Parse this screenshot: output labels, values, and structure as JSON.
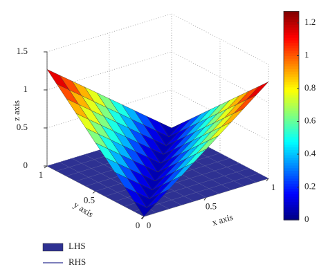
{
  "chart_data": {
    "type": "surface3d",
    "xlabel": "x axis",
    "ylabel": "y axis",
    "zlabel": "z axis",
    "x": [
      0,
      0.1,
      0.2,
      0.3,
      0.4,
      0.5,
      0.6,
      0.7,
      0.8,
      0.9,
      1
    ],
    "y": [
      0,
      0.1,
      0.2,
      0.3,
      0.4,
      0.5,
      0.6,
      0.7,
      0.8,
      0.9,
      1
    ],
    "xlim": [
      0,
      1
    ],
    "xticks": [
      0,
      0.5,
      1
    ],
    "ylim": [
      0,
      1
    ],
    "yticks": [
      0,
      0.5,
      1
    ],
    "zlim": [
      0,
      1.5
    ],
    "zticks": [
      0,
      0.5,
      1,
      1.5
    ],
    "clim": [
      0,
      1.27
    ],
    "cticks": [
      0,
      0.2,
      0.4,
      0.6,
      0.8,
      1,
      1.2
    ],
    "colormap": "jet",
    "grid": true,
    "legend": "bottom-left",
    "series": [
      {
        "name": "LHS",
        "color": "#2e3192",
        "style": "patch",
        "z": [
          [
            0,
            0,
            0,
            0,
            0,
            0,
            0,
            0,
            0,
            0,
            0
          ],
          [
            0,
            0,
            0,
            0,
            0,
            0,
            0,
            0,
            0,
            0,
            0
          ],
          [
            0,
            0,
            0,
            0,
            0,
            0,
            0,
            0,
            0,
            0,
            0
          ],
          [
            0,
            0,
            0,
            0,
            0,
            0,
            0,
            0,
            0,
            0,
            0
          ],
          [
            0,
            0,
            0,
            0,
            0,
            0,
            0,
            0,
            0,
            0,
            0
          ],
          [
            0,
            0,
            0,
            0,
            0,
            0,
            0,
            0,
            0,
            0,
            0
          ],
          [
            0,
            0,
            0,
            0,
            0,
            0,
            0,
            0,
            0,
            0,
            0
          ],
          [
            0,
            0,
            0,
            0,
            0,
            0,
            0,
            0,
            0,
            0,
            0
          ],
          [
            0,
            0,
            0,
            0,
            0,
            0,
            0,
            0,
            0,
            0,
            0
          ],
          [
            0,
            0,
            0,
            0,
            0,
            0,
            0,
            0,
            0,
            0,
            0
          ],
          [
            0,
            0,
            0,
            0,
            0,
            0,
            0,
            0,
            0,
            0,
            0
          ]
        ]
      },
      {
        "name": "RHS",
        "color": "#2e3192",
        "style": "line",
        "z": [
          [
            0,
            0.127,
            0.254,
            0.381,
            0.508,
            0.635,
            0.762,
            0.889,
            1.016,
            1.143,
            1.27
          ],
          [
            0.127,
            0,
            0.127,
            0.254,
            0.381,
            0.508,
            0.635,
            0.762,
            0.889,
            1.016,
            1.143
          ],
          [
            0.254,
            0.127,
            0,
            0.127,
            0.254,
            0.381,
            0.508,
            0.635,
            0.762,
            0.889,
            1.016
          ],
          [
            0.381,
            0.254,
            0.127,
            0,
            0.127,
            0.254,
            0.381,
            0.508,
            0.635,
            0.762,
            0.889
          ],
          [
            0.508,
            0.381,
            0.254,
            0.127,
            0,
            0.127,
            0.254,
            0.381,
            0.508,
            0.635,
            0.762
          ],
          [
            0.635,
            0.508,
            0.381,
            0.254,
            0.127,
            0,
            0.127,
            0.254,
            0.381,
            0.508,
            0.635
          ],
          [
            0.762,
            0.635,
            0.508,
            0.381,
            0.254,
            0.127,
            0,
            0.127,
            0.254,
            0.381,
            0.508
          ],
          [
            0.889,
            0.762,
            0.635,
            0.508,
            0.381,
            0.254,
            0.127,
            0,
            0.127,
            0.254,
            0.381
          ],
          [
            1.016,
            0.889,
            0.762,
            0.635,
            0.508,
            0.381,
            0.254,
            0.127,
            0,
            0.127,
            0.254
          ],
          [
            1.143,
            1.016,
            0.889,
            0.762,
            0.635,
            0.508,
            0.381,
            0.254,
            0.127,
            0,
            0.127
          ],
          [
            1.27,
            1.143,
            1.016,
            0.889,
            0.762,
            0.635,
            0.508,
            0.381,
            0.254,
            0.127,
            0
          ]
        ]
      }
    ]
  }
}
